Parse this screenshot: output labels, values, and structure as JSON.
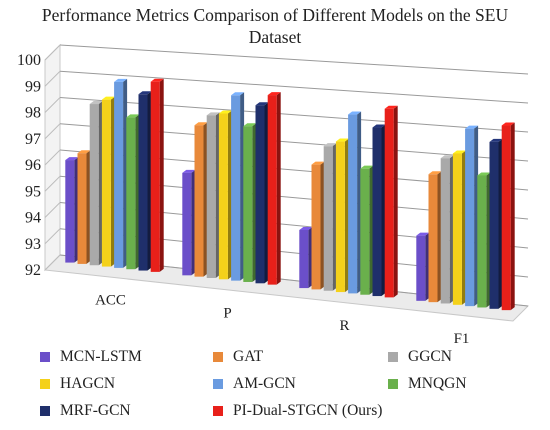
{
  "chart_data": {
    "type": "bar",
    "title": "Performance Metrics Comparison of Different Models on the SEU Dataset",
    "title_lines": [
      "Performance Metrics Comparison of Different Models on the SEU",
      "Dataset"
    ],
    "categories": [
      "ACC",
      "P",
      "R",
      "F1"
    ],
    "ylim": [
      92,
      100
    ],
    "yticks": [
      "92",
      "93",
      "94",
      "95",
      "96",
      "97",
      "98",
      "99",
      "100"
    ],
    "grid": true,
    "legend_position": "bottom",
    "series": [
      {
        "name": "MCN-LSTM",
        "color": "#6b4fc9",
        "values": [
          95.9,
          95.8,
          94.1,
          94.3
        ]
      },
      {
        "name": "GAT",
        "color": "#e8893a",
        "values": [
          96.2,
          97.6,
          96.5,
          96.5
        ]
      },
      {
        "name": "GGCN",
        "color": "#a9a9a9",
        "values": [
          98.1,
          98.0,
          97.2,
          97.1
        ]
      },
      {
        "name": "HAGCN",
        "color": "#f4d11a",
        "values": [
          98.3,
          98.1,
          97.4,
          97.3
        ]
      },
      {
        "name": "AM-GCN",
        "color": "#6a9be0",
        "values": [
          99.0,
          98.8,
          98.4,
          98.2
        ]
      },
      {
        "name": "MNQGN",
        "color": "#6ab04c",
        "values": [
          97.7,
          97.7,
          96.5,
          96.6
        ]
      },
      {
        "name": "MRF-GCN",
        "color": "#1f2f6b",
        "values": [
          98.6,
          98.5,
          98.0,
          97.8
        ]
      },
      {
        "name": "PI-Dual-STGCN (Ours)",
        "color": "#e8201a",
        "values": [
          99.1,
          98.9,
          98.7,
          98.4
        ]
      }
    ]
  }
}
